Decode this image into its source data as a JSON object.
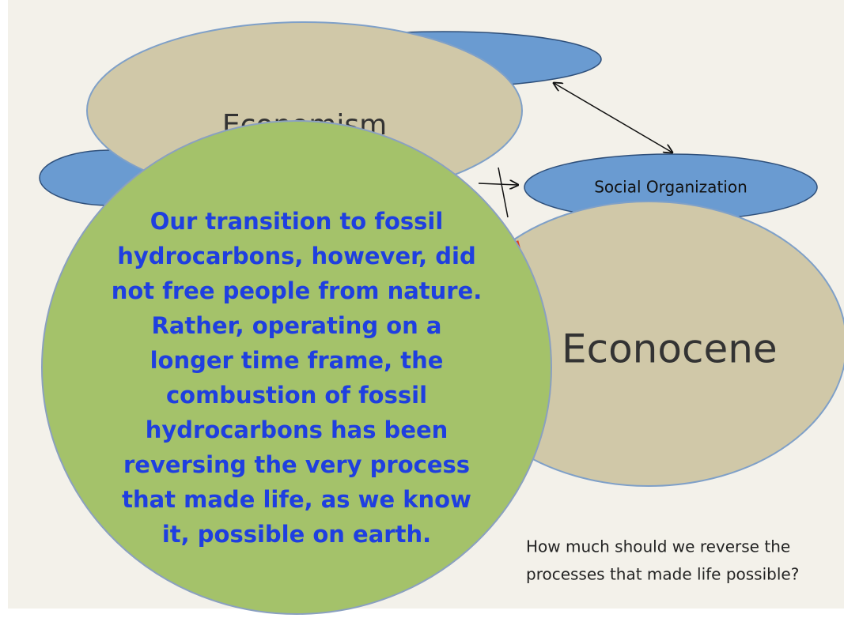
{
  "diagram": {
    "nodes": [
      {
        "label": "Economism"
      },
      {
        "label": "Social Organization"
      },
      {
        "label": "Econocene"
      }
    ],
    "callout": {
      "lines": [
        "Our transition to fossil",
        "hydrocarbons, however, did",
        "not free people from nature.",
        "Rather, operating on a",
        "longer time frame, the",
        "combustion of fossil",
        "hydrocarbons has been",
        "reversing the very process",
        "that made life, as we know",
        "it, possible on earth."
      ]
    },
    "question": {
      "lines": [
        "How much should we reverse the",
        "processes that made life possible?"
      ]
    }
  }
}
